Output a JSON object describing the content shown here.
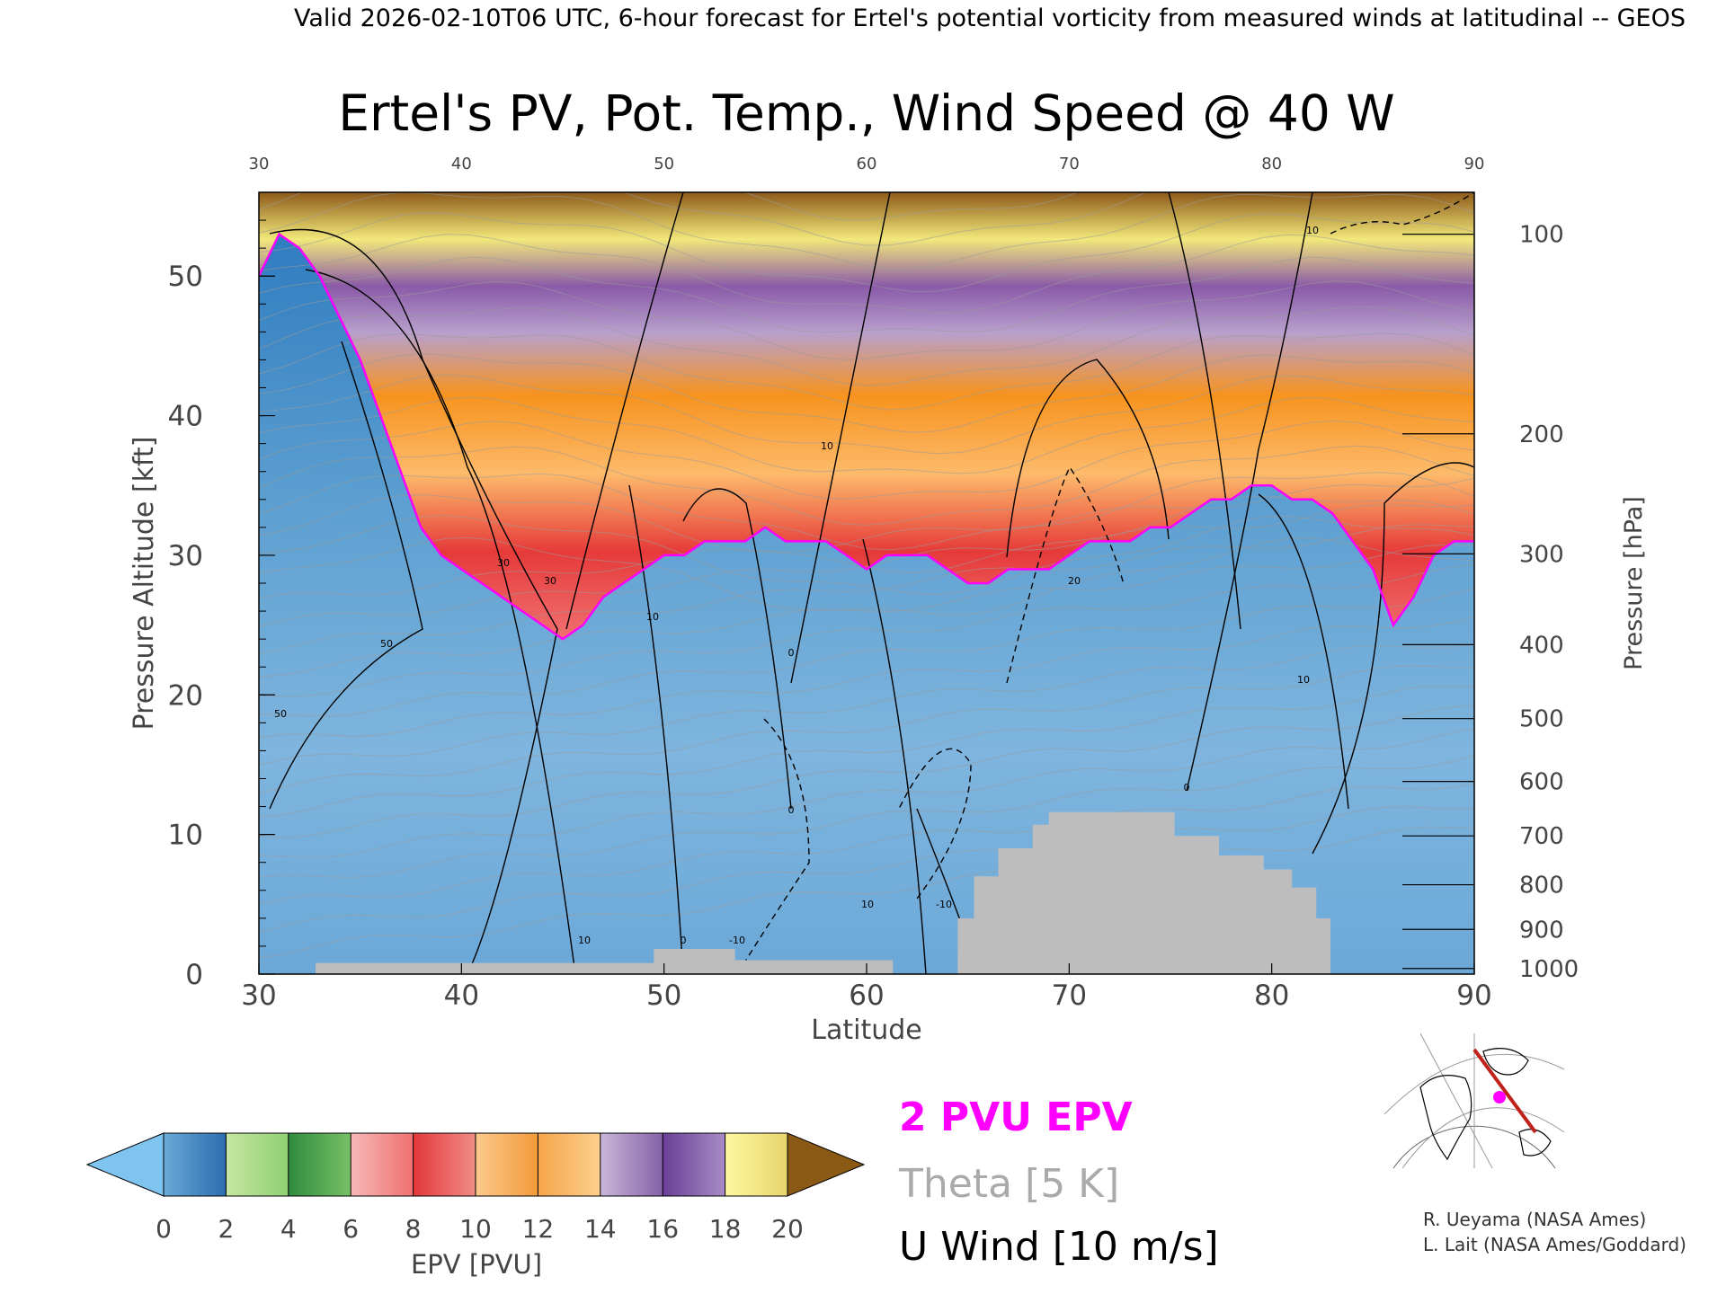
{
  "header": {
    "top_line": "Valid 2026-02-10T06 UTC, 6-hour forecast for Ertel's potential vorticity from measured winds at latitudinal -- GEOS"
  },
  "chart_data": {
    "type": "heatmap",
    "title": "Ertel's PV, Pot. Temp., Wind Speed @ 40 W",
    "xlabel": "Latitude",
    "ylabel": "Pressure Altitude [kft]",
    "y2label": "Pressure [hPa]",
    "xlim": [
      30,
      90
    ],
    "ylim": [
      0,
      56
    ],
    "x_ticks": [
      "30",
      "40",
      "50",
      "60",
      "70",
      "80",
      "90"
    ],
    "top_ticks": [
      "30",
      "40",
      "50",
      "60",
      "70",
      "80",
      "90"
    ],
    "y_ticks": [
      "0",
      "10",
      "20",
      "30",
      "40",
      "50"
    ],
    "pressure_ticks": [
      {
        "label": "100",
        "kft": 53.0
      },
      {
        "label": "200",
        "kft": 38.7
      },
      {
        "label": "300",
        "kft": 30.1
      },
      {
        "label": "400",
        "kft": 23.6
      },
      {
        "label": "500",
        "kft": 18.3
      },
      {
        "label": "600",
        "kft": 13.8
      },
      {
        "label": "700",
        "kft": 9.9
      },
      {
        "label": "800",
        "kft": 6.4
      },
      {
        "label": "900",
        "kft": 3.2
      },
      {
        "label": "1000",
        "kft": 0.4
      }
    ],
    "tropopause_2pvu": {
      "lat": [
        30,
        31,
        32,
        33,
        34,
        35,
        36,
        37,
        38,
        39,
        40,
        41,
        42,
        43,
        44,
        45,
        46,
        47,
        48,
        49,
        50,
        51,
        52,
        53,
        54,
        55,
        56,
        57,
        58,
        59,
        60,
        61,
        62,
        63,
        64,
        65,
        66,
        67,
        68,
        69,
        70,
        71,
        72,
        73,
        74,
        75,
        76,
        77,
        78,
        79,
        80,
        81,
        82,
        83,
        84,
        85,
        86,
        87,
        88,
        89,
        90
      ],
      "kft": [
        50,
        53,
        52,
        50,
        47,
        44,
        40,
        36,
        32,
        30,
        29,
        28,
        27,
        26,
        25,
        24,
        25,
        27,
        28,
        29,
        30,
        30,
        31,
        31,
        31,
        32,
        31,
        31,
        31,
        30,
        29,
        30,
        30,
        30,
        29,
        28,
        28,
        29,
        29,
        29,
        30,
        31,
        31,
        31,
        32,
        32,
        33,
        34,
        34,
        35,
        35,
        34,
        34,
        33,
        31,
        29,
        25,
        27,
        30,
        31,
        31
      ]
    },
    "pv_levels": [
      "0",
      "2",
      "4",
      "6",
      "8",
      "10",
      "12",
      "14",
      "16",
      "18",
      "20"
    ],
    "colorbar_label": "EPV [PVU]",
    "legend": {
      "pvu": "2 PVU EPV",
      "theta": "Theta [5 K]",
      "uwind": "U Wind [10 m/s]"
    },
    "contour_labels": [
      "50",
      "50",
      "30",
      "30",
      "10",
      "10",
      "0",
      "0",
      "-10",
      "10",
      "10",
      "20",
      "10",
      "0",
      "10",
      "-10",
      "-10",
      "10",
      "0",
      "10"
    ],
    "colors": {
      "pvu_contour": "#ff00ff",
      "terrain": "#bdbdbd",
      "theta": "#9a9a9a"
    }
  },
  "credits": {
    "line1": "R. Ueyama (NASA Ames)",
    "line2": "L. Lait (NASA Ames/Goddard)"
  }
}
